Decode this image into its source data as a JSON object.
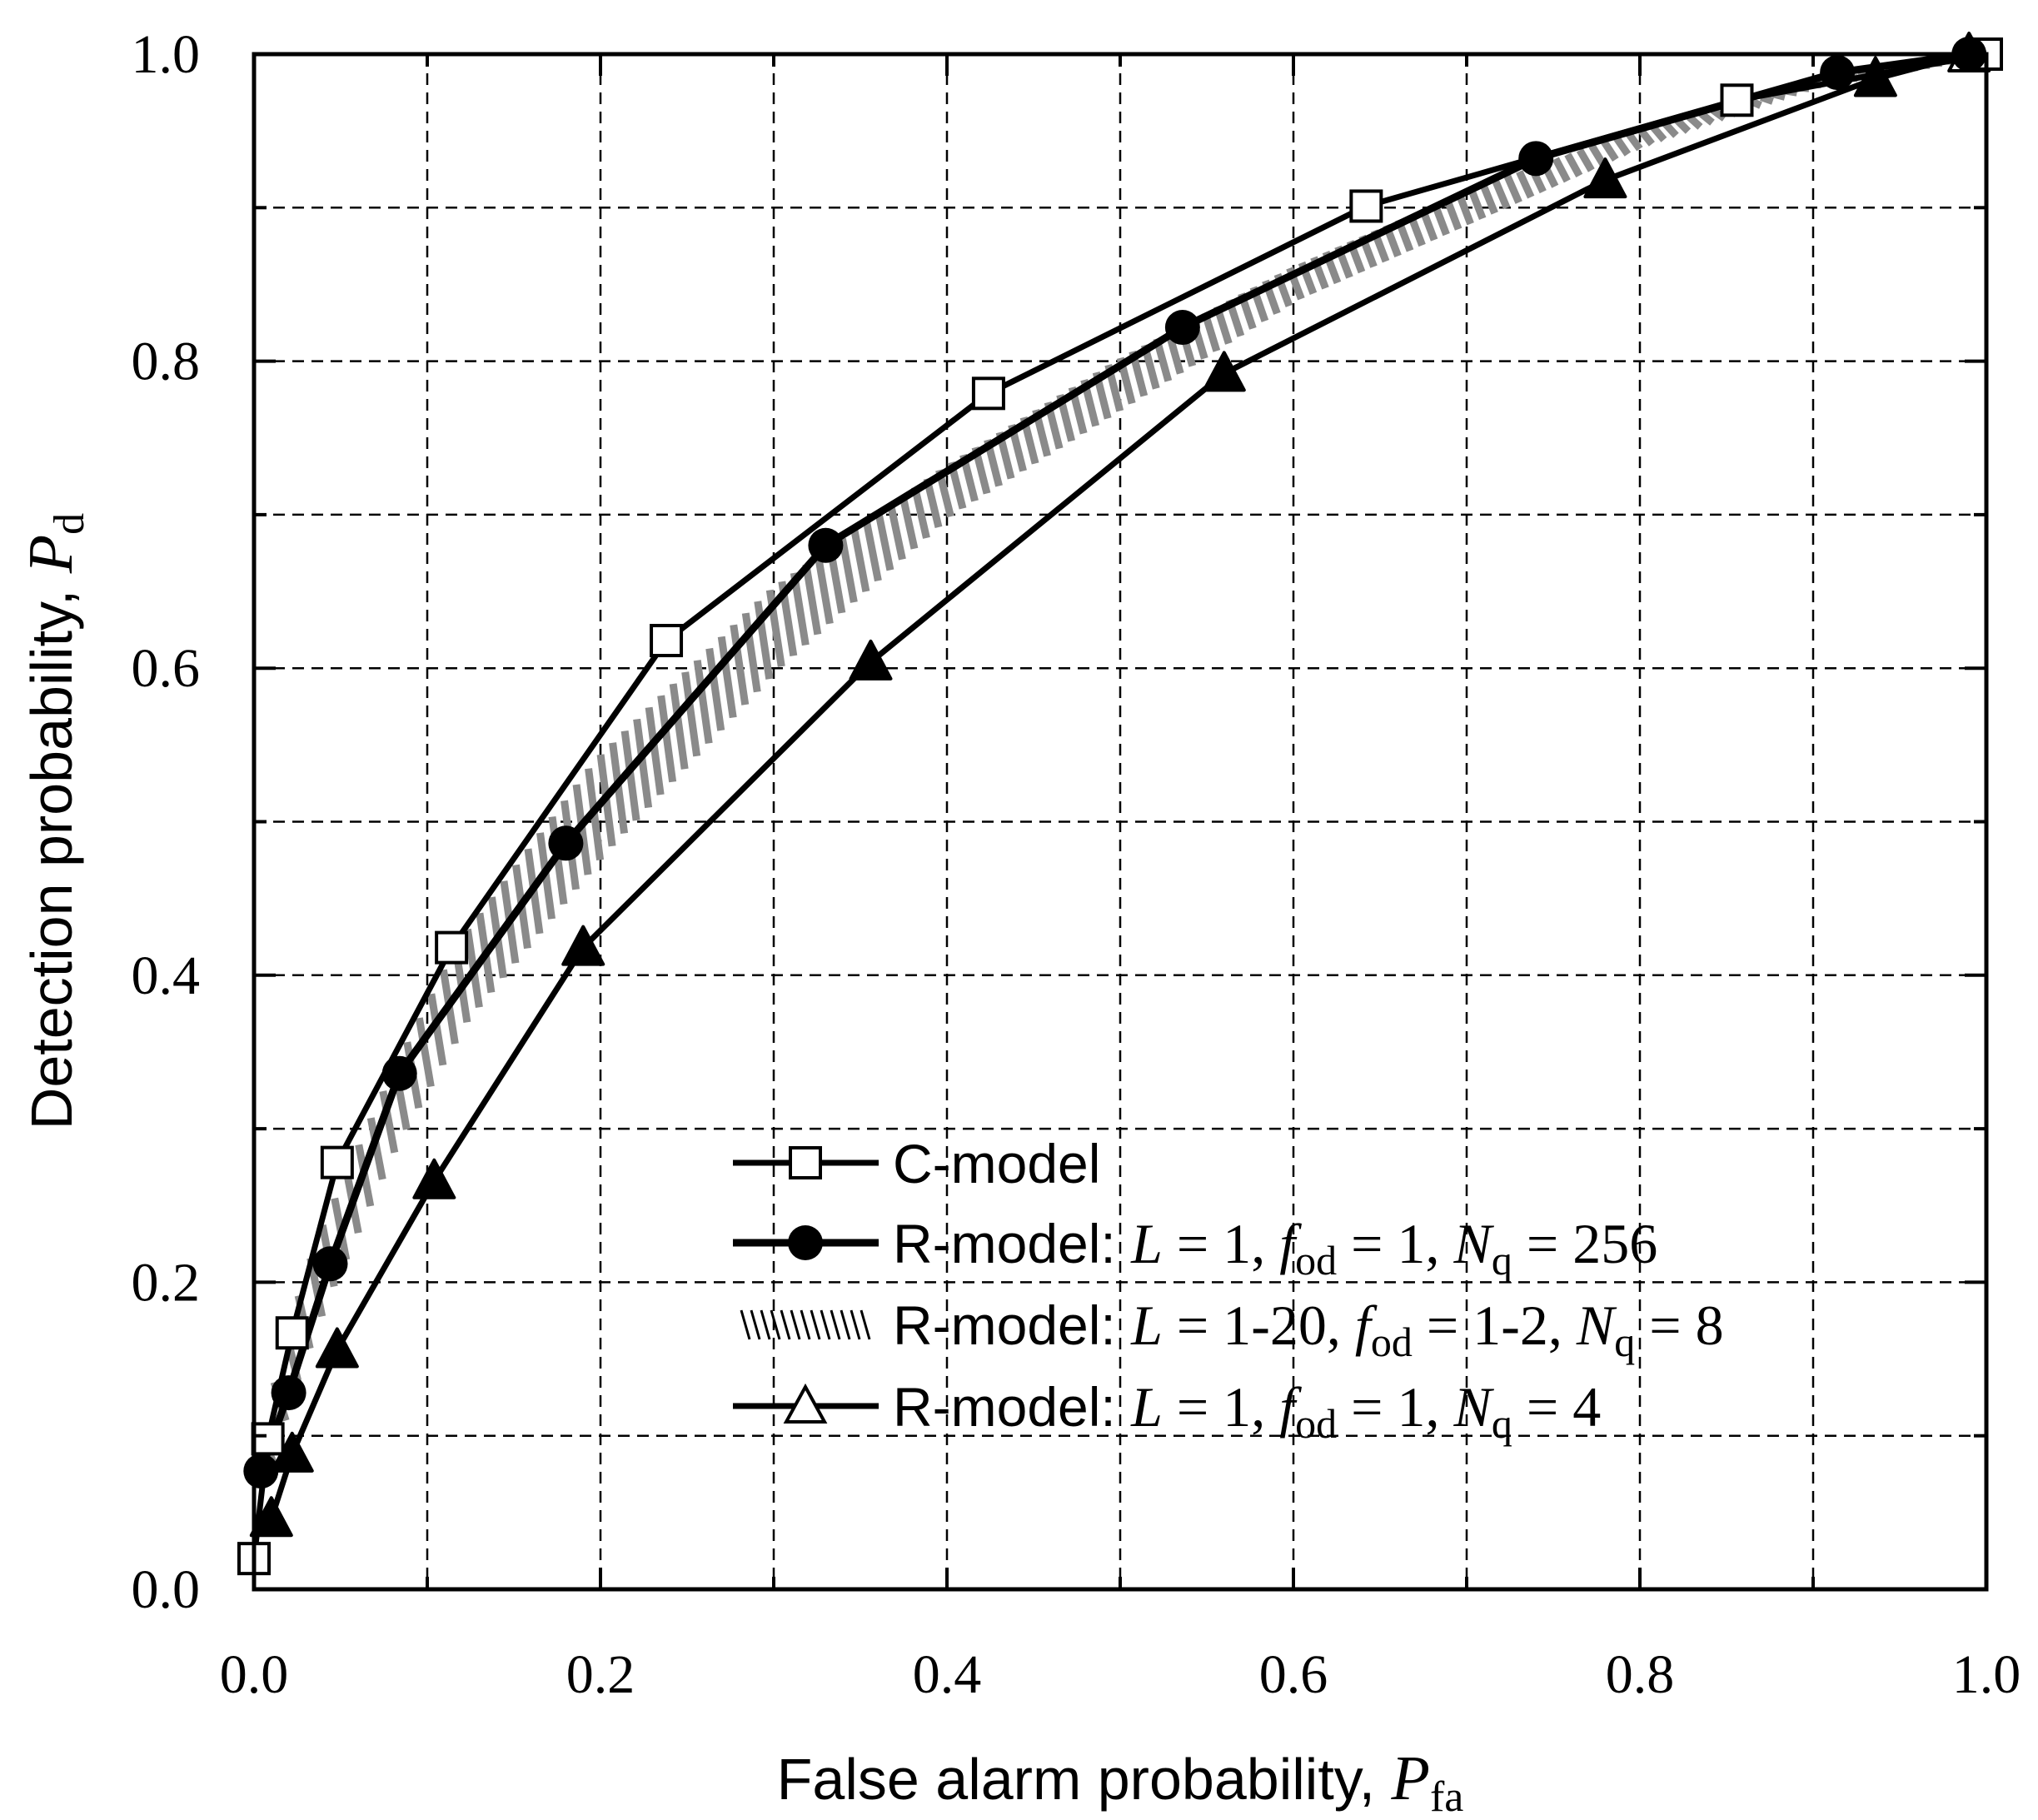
{
  "chart_data": {
    "type": "line",
    "xlabel": {
      "text": "False alarm probability, ",
      "symbol": "P",
      "subscript": "fa"
    },
    "ylabel": {
      "text": "Detection probability, ",
      "symbol": "P",
      "subscript": "d"
    },
    "xlim": [
      0.0,
      1.0
    ],
    "ylim": [
      0.0,
      1.0
    ],
    "xticks": [
      "0.0",
      "0.2",
      "0.4",
      "0.6",
      "0.8",
      "1.0"
    ],
    "yticks": [
      "0.0",
      "0.2",
      "0.4",
      "0.6",
      "0.8",
      "1.0"
    ],
    "grid": true,
    "legend_position": "bottom-right",
    "series": [
      {
        "name": "C-model",
        "marker": "open-square",
        "x": [
          0.0,
          0.008,
          0.022,
          0.048,
          0.114,
          0.238,
          0.424,
          0.642,
          0.856,
          1.0
        ],
        "y": [
          0.02,
          0.098,
          0.167,
          0.278,
          0.418,
          0.618,
          0.779,
          0.901,
          0.97,
          1.0
        ]
      },
      {
        "name": "R-model: L = 1, fod = 1, Nq = 256",
        "legend": {
          "prefix": "R-model: ",
          "L": "1",
          "fod": "1",
          "Nq": "256"
        },
        "marker": "filled-circle",
        "x": [
          0.004,
          0.02,
          0.044,
          0.084,
          0.18,
          0.33,
          0.536,
          0.74,
          0.914,
          0.99
        ],
        "y": [
          0.077,
          0.128,
          0.212,
          0.336,
          0.486,
          0.68,
          0.822,
          0.932,
          0.988,
          1.0
        ]
      },
      {
        "name": "R-model: L = 1-20, fod = 1-2, Nq = 8",
        "legend": {
          "prefix": "R-model: ",
          "L": "1-20",
          "fod": "1-2",
          "Nq": "8"
        },
        "marker": "hatched-band",
        "upper_x": [
          0.0,
          0.02,
          0.04,
          0.08,
          0.12,
          0.2,
          0.3,
          0.4,
          0.5,
          0.6,
          0.7,
          0.8,
          0.9,
          1.0
        ],
        "upper_y": [
          0.06,
          0.16,
          0.23,
          0.33,
          0.42,
          0.54,
          0.65,
          0.73,
          0.8,
          0.86,
          0.91,
          0.95,
          0.98,
          1.0
        ],
        "lower_x": [
          0.0,
          0.02,
          0.04,
          0.08,
          0.12,
          0.2,
          0.3,
          0.4,
          0.5,
          0.6,
          0.7,
          0.8,
          0.9,
          1.0
        ],
        "lower_y": [
          0.05,
          0.13,
          0.19,
          0.29,
          0.37,
          0.48,
          0.6,
          0.7,
          0.77,
          0.84,
          0.89,
          0.94,
          0.98,
          1.0
        ]
      },
      {
        "name": "R-model: L = 1, fod = 1, Nq = 4",
        "legend": {
          "prefix": "R-model: ",
          "L": "1",
          "fod": "1",
          "Nq": "4"
        },
        "marker": "triangle",
        "x": [
          0.01,
          0.022,
          0.048,
          0.104,
          0.19,
          0.356,
          0.56,
          0.78,
          0.936,
          0.99
        ],
        "y": [
          0.046,
          0.088,
          0.156,
          0.266,
          0.418,
          0.604,
          0.792,
          0.918,
          0.984,
          1.0
        ],
        "filled": [
          true,
          true,
          true,
          true,
          true,
          true,
          true,
          true,
          true,
          false
        ]
      }
    ]
  }
}
